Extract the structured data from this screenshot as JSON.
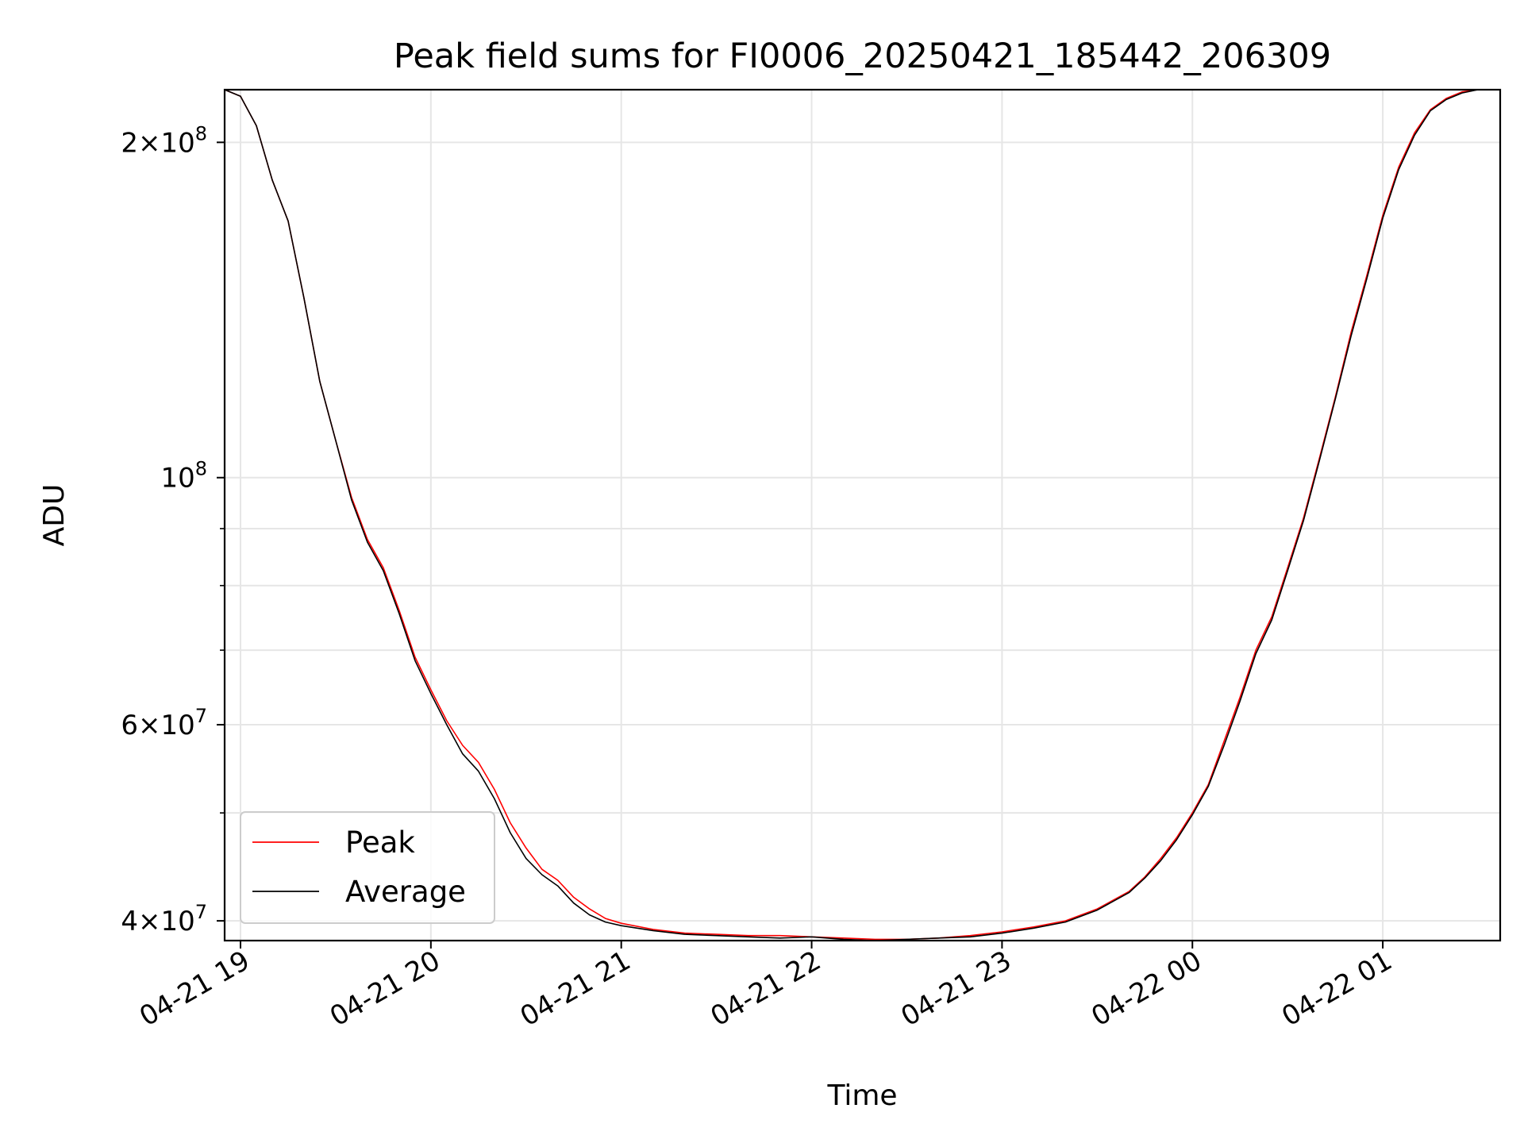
{
  "chart_data": {
    "type": "line",
    "title": "Peak field sums for FI0006_20250421_185442_206309",
    "xlabel": "Time",
    "ylabel": "ADU",
    "yscale": "log",
    "xlim": [
      "2025-04-21 18:55",
      "2025-04-22 01:37"
    ],
    "ylim": [
      38400000,
      223000000
    ],
    "grid": true,
    "legend_position": "lower-left",
    "x_ticks": [
      {
        "x": "2025-04-21 19:00",
        "label": "04-21 19"
      },
      {
        "x": "2025-04-21 20:00",
        "label": "04-21 20"
      },
      {
        "x": "2025-04-21 21:00",
        "label": "04-21 21"
      },
      {
        "x": "2025-04-21 22:00",
        "label": "04-21 22"
      },
      {
        "x": "2025-04-21 23:00",
        "label": "04-21 23"
      },
      {
        "x": "2025-04-22 00:00",
        "label": "04-22 00"
      },
      {
        "x": "2025-04-22 01:00",
        "label": "04-22 01"
      }
    ],
    "y_major_ticks": [
      {
        "value": 40000000,
        "mantissa": "4",
        "exp": "7"
      },
      {
        "value": 60000000,
        "mantissa": "6",
        "exp": "7"
      },
      {
        "value": 100000000,
        "mantissa": "",
        "exp": "8"
      },
      {
        "value": 200000000,
        "mantissa": "2",
        "exp": "8"
      }
    ],
    "y_minor_ticks": [
      50000000,
      70000000,
      80000000,
      90000000
    ],
    "series": [
      {
        "name": "Peak",
        "color": "#ff0000",
        "x": [
          "2025-04-21 18:55",
          "2025-04-21 19:00",
          "2025-04-21 19:05",
          "2025-04-21 19:10",
          "2025-04-21 19:15",
          "2025-04-21 19:20",
          "2025-04-21 19:25",
          "2025-04-21 19:30",
          "2025-04-21 19:35",
          "2025-04-21 19:40",
          "2025-04-21 19:45",
          "2025-04-21 19:50",
          "2025-04-21 19:55",
          "2025-04-21 20:00",
          "2025-04-21 20:05",
          "2025-04-21 20:10",
          "2025-04-21 20:15",
          "2025-04-21 20:20",
          "2025-04-21 20:25",
          "2025-04-21 20:30",
          "2025-04-21 20:35",
          "2025-04-21 20:40",
          "2025-04-21 20:45",
          "2025-04-21 20:50",
          "2025-04-21 20:55",
          "2025-04-21 21:00",
          "2025-04-21 21:10",
          "2025-04-21 21:20",
          "2025-04-21 21:30",
          "2025-04-21 21:40",
          "2025-04-21 21:50",
          "2025-04-21 22:00",
          "2025-04-21 22:10",
          "2025-04-21 22:20",
          "2025-04-21 22:30",
          "2025-04-21 22:40",
          "2025-04-21 22:50",
          "2025-04-21 23:00",
          "2025-04-21 23:10",
          "2025-04-21 23:20",
          "2025-04-21 23:30",
          "2025-04-21 23:40",
          "2025-04-21 23:45",
          "2025-04-21 23:50",
          "2025-04-21 23:55",
          "2025-04-22 00:00",
          "2025-04-22 00:05",
          "2025-04-22 00:10",
          "2025-04-22 00:15",
          "2025-04-22 00:20",
          "2025-04-22 00:25",
          "2025-04-22 00:30",
          "2025-04-22 00:35",
          "2025-04-22 00:40",
          "2025-04-22 00:45",
          "2025-04-22 00:50",
          "2025-04-22 00:55",
          "2025-04-22 01:00",
          "2025-04-22 01:05",
          "2025-04-22 01:10",
          "2025-04-22 01:15",
          "2025-04-22 01:20",
          "2025-04-22 01:25",
          "2025-04-22 01:30",
          "2025-04-22 01:37"
        ],
        "values": [
          223000000,
          220000000,
          207000000,
          185000000,
          170000000,
          145000000,
          122000000,
          108000000,
          96000000,
          88000000,
          83000000,
          76000000,
          69000000,
          64500000,
          60500000,
          57500000,
          55500000,
          52500000,
          49000000,
          46500000,
          44500000,
          43500000,
          42000000,
          41000000,
          40200000,
          39800000,
          39300000,
          39000000,
          38900000,
          38800000,
          38800000,
          38700000,
          38600000,
          38500000,
          38500000,
          38600000,
          38800000,
          39100000,
          39500000,
          40000000,
          41000000,
          42500000,
          43800000,
          45500000,
          47500000,
          50000000,
          53000000,
          58000000,
          63500000,
          70000000,
          75000000,
          83000000,
          92000000,
          104000000,
          118000000,
          135000000,
          152000000,
          172000000,
          190000000,
          204000000,
          214000000,
          219000000,
          222000000,
          223000000,
          223000000
        ]
      },
      {
        "name": "Average",
        "color": "#000000",
        "x": [
          "2025-04-21 18:55",
          "2025-04-21 19:00",
          "2025-04-21 19:05",
          "2025-04-21 19:10",
          "2025-04-21 19:15",
          "2025-04-21 19:20",
          "2025-04-21 19:25",
          "2025-04-21 19:30",
          "2025-04-21 19:35",
          "2025-04-21 19:40",
          "2025-04-21 19:45",
          "2025-04-21 19:50",
          "2025-04-21 19:55",
          "2025-04-21 20:00",
          "2025-04-21 20:05",
          "2025-04-21 20:10",
          "2025-04-21 20:15",
          "2025-04-21 20:20",
          "2025-04-21 20:25",
          "2025-04-21 20:30",
          "2025-04-21 20:35",
          "2025-04-21 20:40",
          "2025-04-21 20:45",
          "2025-04-21 20:50",
          "2025-04-21 20:55",
          "2025-04-21 21:00",
          "2025-04-21 21:10",
          "2025-04-21 21:20",
          "2025-04-21 21:30",
          "2025-04-21 21:40",
          "2025-04-21 21:50",
          "2025-04-21 22:00",
          "2025-04-21 22:10",
          "2025-04-21 22:20",
          "2025-04-21 22:30",
          "2025-04-21 22:40",
          "2025-04-21 22:50",
          "2025-04-21 23:00",
          "2025-04-21 23:10",
          "2025-04-21 23:20",
          "2025-04-21 23:30",
          "2025-04-21 23:40",
          "2025-04-21 23:45",
          "2025-04-21 23:50",
          "2025-04-21 23:55",
          "2025-04-22 00:00",
          "2025-04-22 00:05",
          "2025-04-22 00:10",
          "2025-04-22 00:15",
          "2025-04-22 00:20",
          "2025-04-22 00:25",
          "2025-04-22 00:30",
          "2025-04-22 00:35",
          "2025-04-22 00:40",
          "2025-04-22 00:45",
          "2025-04-22 00:50",
          "2025-04-22 00:55",
          "2025-04-22 01:00",
          "2025-04-22 01:05",
          "2025-04-22 01:10",
          "2025-04-22 01:15",
          "2025-04-22 01:20",
          "2025-04-22 01:25",
          "2025-04-22 01:30",
          "2025-04-22 01:37"
        ],
        "values": [
          223000000,
          220000000,
          207000000,
          185000000,
          170000000,
          145000000,
          122000000,
          108000000,
          95500000,
          87500000,
          82500000,
          75500000,
          68500000,
          64000000,
          60000000,
          56500000,
          54500000,
          51500000,
          48000000,
          45500000,
          44000000,
          43000000,
          41500000,
          40500000,
          39900000,
          39600000,
          39200000,
          38900000,
          38800000,
          38700000,
          38600000,
          38700000,
          38500000,
          38400000,
          38500000,
          38600000,
          38700000,
          39000000,
          39400000,
          39900000,
          40900000,
          42400000,
          43700000,
          45300000,
          47300000,
          49800000,
          52800000,
          57500000,
          63000000,
          69500000,
          74500000,
          82500000,
          91500000,
          103500000,
          117500000,
          134000000,
          151000000,
          171000000,
          189000000,
          203000000,
          213500000,
          218500000,
          221500000,
          223000000,
          223000000
        ]
      }
    ]
  }
}
